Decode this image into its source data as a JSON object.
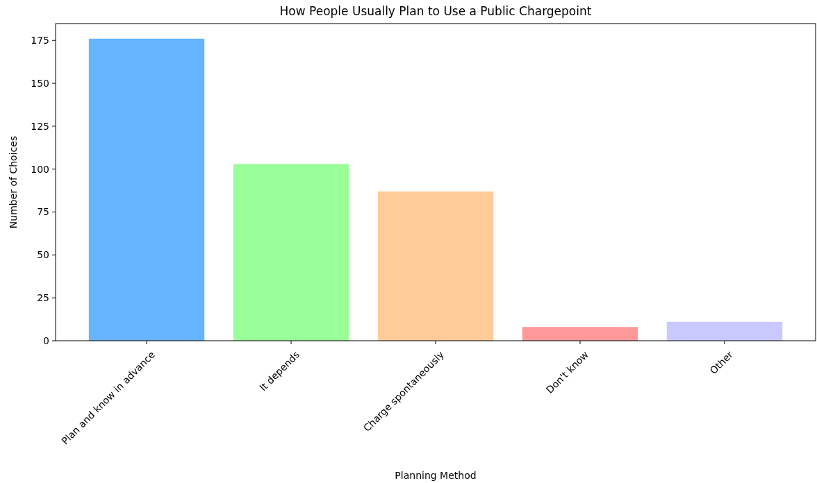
{
  "chart_data": {
    "type": "bar",
    "title": "How People Usually Plan to Use a Public Chargepoint",
    "xlabel": "Planning Method",
    "ylabel": "Number of Choices",
    "categories": [
      "Plan and know in advance",
      "It depends",
      "Charge spontaneously",
      "Don't know",
      "Other"
    ],
    "values": [
      176,
      103,
      87,
      8,
      11
    ],
    "colors": [
      "#66b3ff",
      "#99ff99",
      "#ffcc99",
      "#ff9999",
      "#c9c9ff"
    ],
    "ylim": [
      0,
      184.8
    ],
    "yticks": [
      0,
      25,
      50,
      75,
      100,
      125,
      150,
      175
    ],
    "grid": false
  }
}
